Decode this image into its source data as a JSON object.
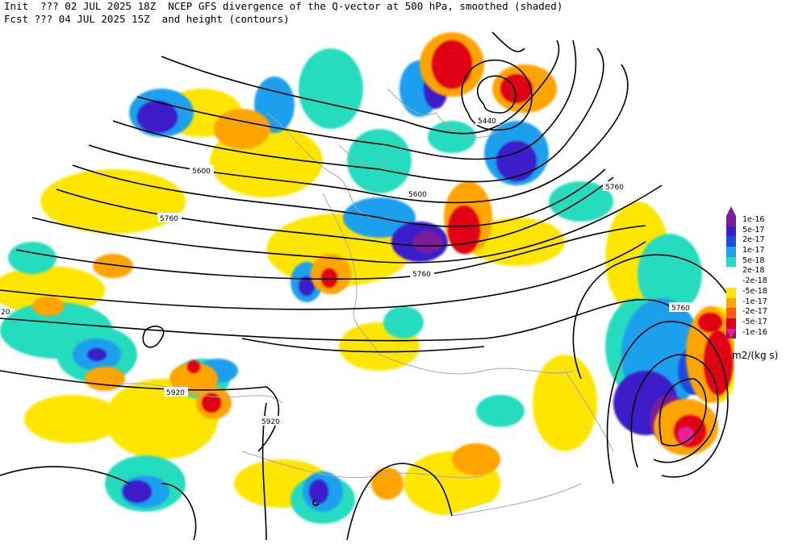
{
  "header": {
    "line1": "Init  ??? 02 JUL 2025 18Z  NCEP GFS divergence of the Q-vector at 500 hPa, smoothed (shaded)",
    "line2": "Fcst ??? 04 JUL 2025 15Z  and height (contours)"
  },
  "contour_labels": [
    "5440",
    "5600",
    "5600",
    "5760",
    "5760",
    "5760",
    "5760",
    "5920",
    "5920",
    "20"
  ],
  "legend": {
    "unit": "m2/(kg s)",
    "entries": [
      {
        "label": "1e-16",
        "color": "#7a1f9a"
      },
      {
        "label": "5e-17",
        "color": "#3a1ec8"
      },
      {
        "label": "2e-17",
        "color": "#1c4be0"
      },
      {
        "label": "1e-17",
        "color": "#1aa0ee"
      },
      {
        "label": "5e-18",
        "color": "#27dcbe"
      },
      {
        "label": "2e-18",
        "color": "#ffffff"
      },
      {
        "label": "-2e-18",
        "color": "#ffffff"
      },
      {
        "label": "-5e-18",
        "color": "#ffe600"
      },
      {
        "label": "-1e-17",
        "color": "#ffa400"
      },
      {
        "label": "-2e-17",
        "color": "#ff5a00"
      },
      {
        "label": "-5e-17",
        "color": "#e00014"
      },
      {
        "label": "-1e-16",
        "color": "#a0105a"
      }
    ]
  },
  "colors": {
    "strong_pos": "#3a1ec8",
    "pos": "#1c4be0",
    "weak_pos": "#1aa0ee",
    "faint_pos": "#27dcbe",
    "faint_neg": "#ffe600",
    "weak_neg": "#ffa400",
    "neg": "#ff5a00",
    "strong_neg": "#e00014",
    "max_neg": "#e8209c",
    "border": "#a8a8a8",
    "contour": "#000000"
  }
}
